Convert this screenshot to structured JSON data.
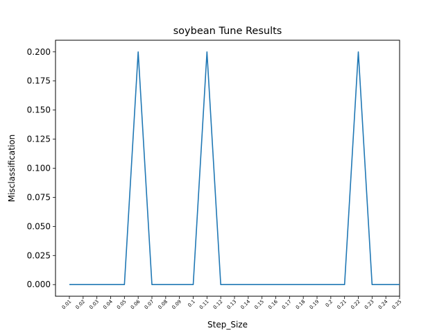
{
  "chart_data": {
    "type": "line",
    "title": "soybean Tune Results",
    "xlabel": "Step_Size",
    "ylabel": "Misclassification",
    "categories": [
      "0.01",
      "0.02",
      "0.03",
      "0.04",
      "0.05",
      "0.06",
      "0.07",
      "0.08",
      "0.09",
      "0.1",
      "0.11",
      "0.12",
      "0.13",
      "0.14",
      "0.15",
      "0.16",
      "0.17",
      "0.18",
      "0.19",
      "0.2",
      "0.21",
      "0.22",
      "0.23",
      "0.24",
      "0.25"
    ],
    "series": [
      {
        "values": [
          0,
          0,
          0,
          0,
          0,
          0.2,
          0,
          0,
          0,
          0,
          0.2,
          0,
          0,
          0,
          0,
          0,
          0,
          0,
          0,
          0,
          0,
          0.2,
          0,
          0,
          0
        ],
        "color": "#1f77b4"
      }
    ],
    "yticks": [
      "0.000",
      "0.025",
      "0.050",
      "0.075",
      "0.100",
      "0.125",
      "0.150",
      "0.175",
      "0.200"
    ],
    "ylim": [
      -0.01,
      0.21
    ],
    "grid": false,
    "legend": "none"
  }
}
